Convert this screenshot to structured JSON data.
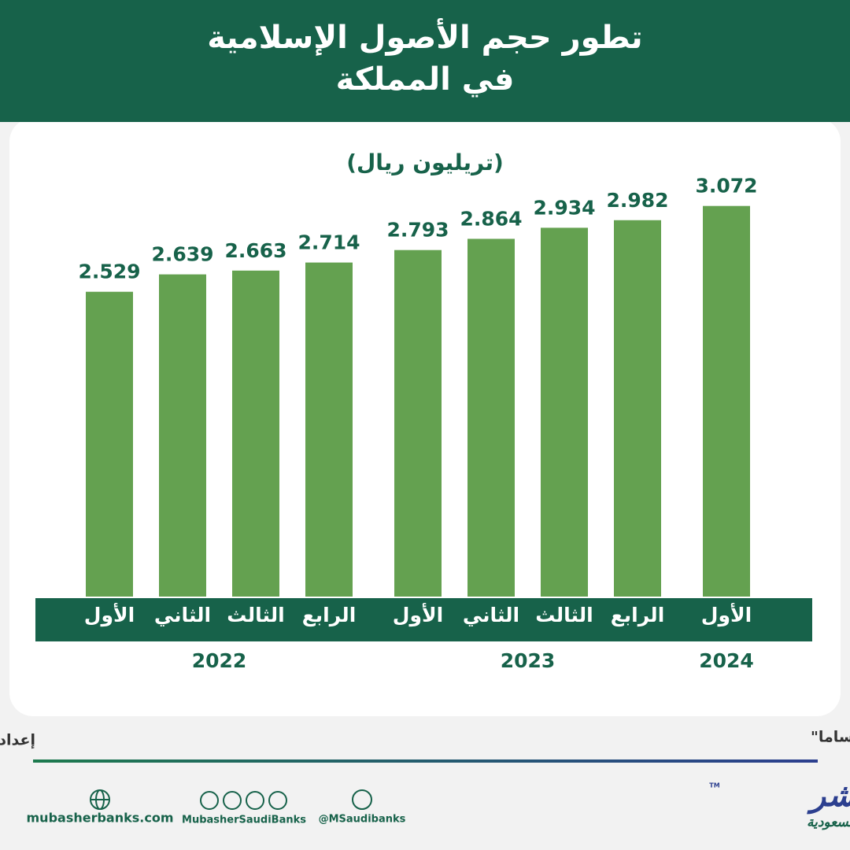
{
  "chart_data": {
    "type": "bar",
    "title": [
      "تطور حجم الأصول الإسلامية",
      "في المملكة"
    ],
    "subtitle": "(تريليون ريال)",
    "groups": [
      {
        "label": "2022",
        "categories": [
          "الأول",
          "الثاني",
          "الثالث",
          "الرابع"
        ],
        "values": [
          2.529,
          2.639,
          2.663,
          2.714
        ]
      },
      {
        "label": "2023",
        "categories": [
          "الأول",
          "الثاني",
          "الثالث",
          "الرابع"
        ],
        "values": [
          2.793,
          2.864,
          2.934,
          2.982
        ]
      },
      {
        "label": "2024",
        "categories": [
          "الأول"
        ],
        "values": [
          3.072
        ]
      }
    ],
    "color": "#64a150",
    "ylim": [
      0.6,
      3.2
    ]
  },
  "source": "المصدر: البنك المركزي السعودي \"ساما\"",
  "author": "إعداد: السيد جمال",
  "footer": {
    "website": "mubasherbanks.com",
    "social": "MubasherSaudiBanks",
    "twitter": "@MSaudibanks"
  },
  "logo": {
    "name": "مباشر",
    "tagline": "بنوك السعودية",
    "tm": "TM"
  }
}
